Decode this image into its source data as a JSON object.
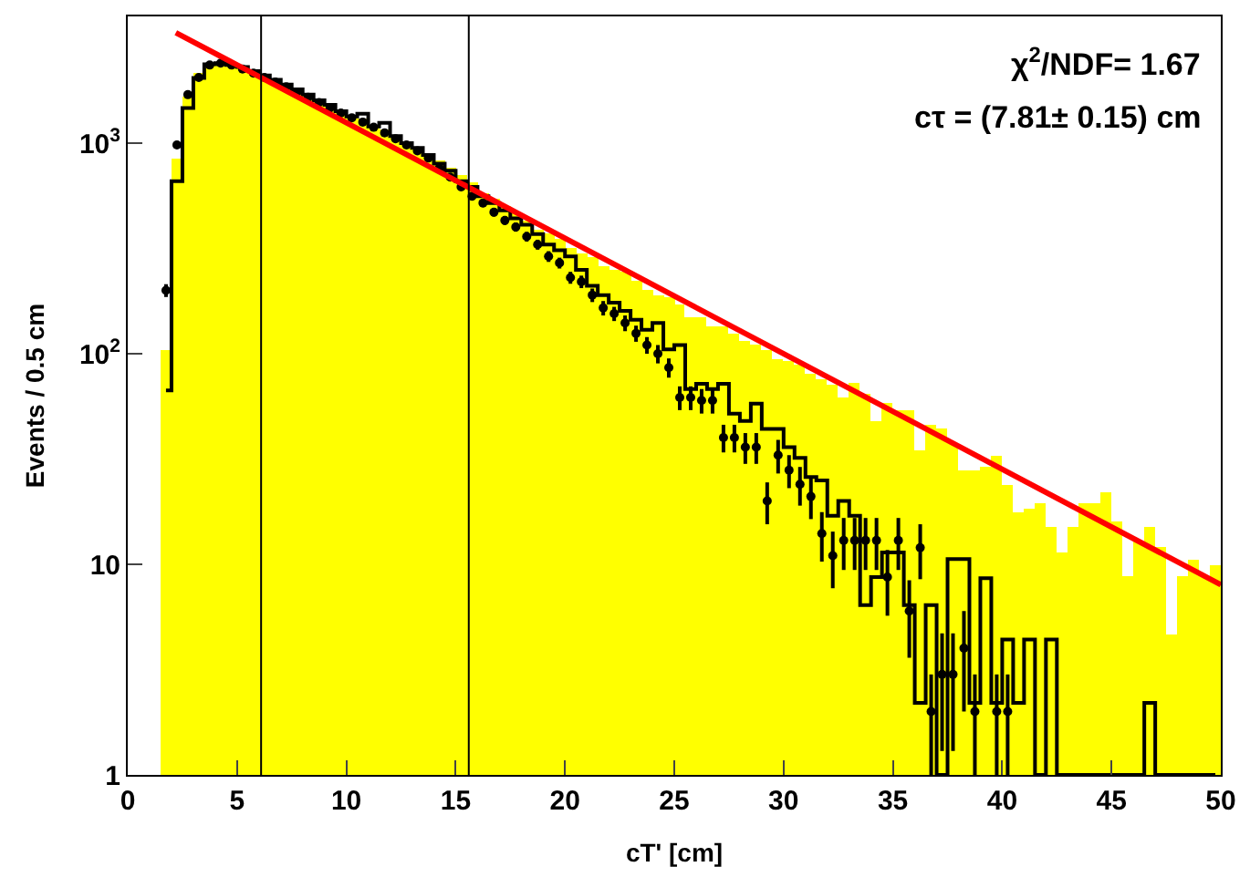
{
  "chart_data": {
    "type": "histogram",
    "xlabel": "cT' [cm]",
    "ylabel": "Events / 0.5 cm",
    "annotations": [
      "χ$^{2}$/NDF= 1.67",
      "cτ = (7.81± 0.15) cm"
    ],
    "bins": [
      0,
      0.5,
      1,
      1.5,
      2,
      2.5,
      3,
      3.5,
      4,
      4.5,
      5,
      5.5,
      6,
      6.5,
      7,
      7.5,
      8,
      8.5,
      9,
      9.5,
      10,
      10.5,
      11,
      11.5,
      12,
      12.5,
      13,
      13.5,
      14,
      14.5,
      15,
      15.5,
      16,
      16.5,
      17,
      17.5,
      18,
      18.5,
      19,
      19.5,
      20,
      20.5,
      21,
      21.5,
      22,
      22.5,
      23,
      23.5,
      24,
      24.5,
      25,
      25.5,
      26,
      26.5,
      27,
      27.5,
      28,
      28.5,
      29,
      29.5,
      30,
      30.5,
      31,
      31.5,
      32,
      32.5,
      33,
      33.5,
      34,
      34.5,
      35,
      35.5,
      36,
      36.5,
      37,
      37.5,
      38,
      38.5,
      39,
      39.5,
      40,
      40.5,
      41,
      41.5,
      42,
      42.5,
      43,
      43.5,
      44,
      44.5,
      45,
      45.5,
      46,
      46.5,
      47,
      47.5,
      48,
      48.5,
      49,
      49.5,
      50
    ],
    "series": [
      {
        "type": "histogram",
        "color": "#ffff00",
        "values": [
          null,
          null,
          null,
          104,
          840,
          1680,
          2150,
          2400,
          2420,
          2380,
          2300,
          2200,
          2100,
          2000,
          1900,
          1820,
          1720,
          1620,
          1550,
          1450,
          1360,
          1300,
          1220,
          1160,
          1080,
          1010,
          950,
          890,
          830,
          770,
          700,
          650,
          580,
          540,
          500,
          460,
          430,
          390,
          370,
          350,
          320,
          300,
          285,
          260,
          250,
          245,
          220,
          200,
          190,
          185,
          170,
          150,
          150,
          135,
          135,
          125,
          115,
          110,
          105,
          95,
          92,
          88,
          80,
          76,
          72,
          62,
          73,
          64,
          48,
          58,
          54,
          54,
          35,
          46,
          44,
          38,
          28,
          28,
          29,
          33,
          24,
          17.8,
          18.5,
          19.6,
          15,
          11.4,
          15,
          19.6,
          19.6,
          22,
          16,
          8.8,
          12.8,
          15,
          12,
          4.6,
          8.8,
          10.6,
          8.8,
          10
        ]
      },
      {
        "type": "step",
        "color": "#000000",
        "x": [
          1.75,
          2.25,
          2.75,
          3.25,
          3.75,
          4.25,
          4.75,
          5.25,
          5.75,
          6.25,
          6.75,
          7.25,
          7.75,
          8.25,
          8.75,
          9.25,
          9.75,
          10.25,
          10.75,
          11.25,
          11.75,
          12.25,
          12.75,
          13.25,
          13.75,
          14.25,
          14.75,
          15.25,
          15.75,
          16.25,
          16.75,
          17.25,
          17.75,
          18.25,
          18.75,
          19.25,
          19.75,
          20.25,
          20.75,
          21.25,
          21.75,
          22.25,
          22.75,
          23.25,
          23.75,
          24.25,
          24.75,
          25.25,
          25.75,
          26.25,
          26.75,
          27.25,
          27.75,
          28.25,
          28.75,
          29.25,
          29.75,
          30.25,
          30.75,
          31.25,
          31.75,
          32.25,
          32.75,
          33.25,
          33.75,
          34.25,
          34.75,
          35.25,
          35.75,
          36.25,
          36.75,
          37.25,
          37.75,
          38.25,
          38.75,
          39.25,
          39.75,
          40.25,
          40.75,
          41.25,
          41.75,
          42.25,
          42.75,
          43.25,
          43.75,
          44.25,
          44.75,
          45.25,
          45.75,
          46.25,
          46.75,
          47.25,
          47.75,
          48.25,
          48.75,
          49.25,
          49.75
        ],
        "values": [
          67,
          660,
          1470,
          2040,
          2370,
          2400,
          2350,
          2300,
          2200,
          2100,
          2000,
          1900,
          1800,
          1700,
          1600,
          1520,
          1420,
          1340,
          1380,
          1200,
          1250,
          1080,
          1000,
          950,
          880,
          800,
          740,
          660,
          620,
          560,
          520,
          480,
          440,
          410,
          370,
          330,
          310,
          290,
          250,
          210,
          190,
          175,
          160,
          145,
          130,
          140,
          105,
          110,
          68,
          72,
          68,
          72,
          52,
          48,
          58,
          44,
          44,
          36,
          32,
          26,
          25,
          17,
          20,
          17,
          6.4,
          8.7,
          11.4,
          11.4,
          6.4,
          2.2,
          6.4,
          1,
          10.6,
          10.6,
          2.2,
          8.6,
          2.2,
          4.4,
          2.2,
          4.4,
          1,
          4.4,
          1,
          1,
          1,
          1,
          1,
          1,
          1,
          1,
          2.2,
          1,
          1,
          1,
          1,
          1,
          1
        ]
      },
      {
        "type": "scatter",
        "color": "#000000",
        "marker": "circle",
        "x": [
          1.75,
          2.25,
          2.75,
          3.25,
          3.75,
          4.25,
          4.75,
          5.25,
          5.75,
          6.25,
          6.75,
          7.25,
          7.75,
          8.25,
          8.75,
          9.25,
          9.75,
          10.25,
          10.75,
          11.25,
          11.75,
          12.25,
          12.75,
          13.25,
          13.75,
          14.25,
          14.75,
          15.25,
          15.75,
          16.25,
          16.75,
          17.25,
          17.75,
          18.25,
          18.75,
          19.25,
          19.75,
          20.25,
          20.75,
          21.25,
          21.75,
          22.25,
          22.75,
          23.25,
          23.75,
          24.25,
          24.75,
          25.25,
          25.75,
          26.25,
          26.75,
          27.25,
          27.75,
          28.25,
          28.75,
          29.25,
          29.75,
          30.25,
          30.75,
          31.25,
          31.75,
          32.25,
          32.75,
          33.25,
          33.75,
          34.25,
          34.75,
          35.25,
          35.75,
          36.25,
          36.75,
          37.25,
          37.75,
          38.25,
          38.75,
          39.75,
          40.25
        ],
        "values": [
          200,
          980,
          1700,
          2050,
          2350,
          2400,
          2350,
          2250,
          2150,
          2050,
          1950,
          1850,
          1750,
          1650,
          1560,
          1470,
          1390,
          1320,
          1260,
          1190,
          1120,
          1050,
          980,
          920,
          850,
          760,
          690,
          620,
          560,
          520,
          470,
          430,
          400,
          360,
          330,
          290,
          270,
          230,
          220,
          190,
          165,
          155,
          140,
          125,
          110,
          100,
          86,
          62,
          62,
          60,
          60,
          40,
          40,
          36,
          36,
          20,
          33,
          28,
          24,
          21,
          14,
          11,
          13,
          13,
          13,
          13,
          8.7,
          13,
          6,
          12,
          2,
          3,
          3,
          4,
          2,
          2,
          2
        ],
        "errors": [
          14,
          31,
          41,
          45,
          48,
          49,
          48,
          47,
          46,
          45,
          44,
          43,
          42,
          41,
          39,
          38,
          37,
          36,
          35,
          34,
          33,
          32,
          31,
          30,
          29,
          28,
          26,
          25,
          24,
          23,
          22,
          21,
          20,
          19,
          18,
          17,
          16,
          15,
          15,
          14,
          13,
          12,
          12,
          11,
          10,
          10,
          9,
          8,
          8,
          8,
          8,
          6,
          6,
          6,
          6,
          4.5,
          6,
          5,
          5,
          4.6,
          3.7,
          3.3,
          3.6,
          3.6,
          3.6,
          3.6,
          3,
          3.6,
          2.4,
          3.5,
          1,
          1.7,
          1.7,
          2,
          1,
          1,
          1
        ]
      },
      {
        "type": "line",
        "color": "#ff0000",
        "x": [
          2.2,
          50
        ],
        "values": [
          3350,
          8
        ]
      }
    ],
    "xlim": [
      0,
      50
    ],
    "ylim": [
      1,
      4000
    ],
    "log": "y",
    "xticks": [
      0,
      5,
      10,
      15,
      20,
      25,
      30,
      35,
      40,
      45,
      50
    ],
    "yticks": [
      1,
      10,
      {
        "value": 100,
        "label": "10$^{2}$"
      },
      {
        "value": 1000,
        "label": "10$^{3}$"
      }
    ],
    "ref_lines": [
      {
        "axis": "x",
        "value": 6.1,
        "color": "#000000"
      },
      {
        "axis": "x",
        "value": 15.6,
        "color": "#000000"
      }
    ]
  }
}
